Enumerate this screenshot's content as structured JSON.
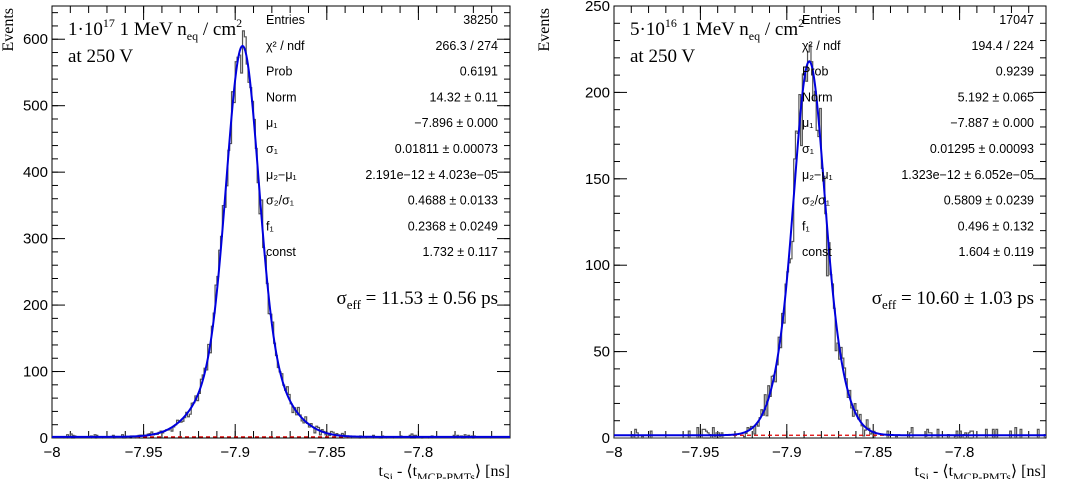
{
  "chart_data": [
    {
      "type": "histogram",
      "ylabel": "Events",
      "xlabel": {
        "main": "t",
        "sub1": "Si",
        "mid": " - ⟨t",
        "sub2": "MCP-PMTs",
        "end": "⟩ [ns]"
      },
      "xlim": [
        -8.0,
        -7.75
      ],
      "ylim": [
        0,
        650
      ],
      "x_ticks": [
        -8,
        -7.95,
        -7.9,
        -7.85,
        -7.8
      ],
      "x_tick_labels": [
        "−8",
        "−7.95",
        "−7.9",
        "−7.85",
        "−7.8"
      ],
      "y_ticks": [
        0,
        100,
        200,
        300,
        400,
        500,
        600
      ],
      "y_tick_labels": [
        "0",
        "100",
        "200",
        "300",
        "400",
        "500",
        "600"
      ],
      "condition": {
        "base": "1·10",
        "exp": "17",
        "mid": " 1 MeV n",
        "sub": "eq",
        "tail": " / cm",
        "exp2": "2",
        "line2": "at 250 V"
      },
      "stats": [
        {
          "label": "Entries",
          "value": "38250"
        },
        {
          "label": "χ² / ndf",
          "value": "266.3 / 274"
        },
        {
          "label": "Prob",
          "value": "0.6191"
        },
        {
          "label": "Norm",
          "value": "14.32  ± 0.11"
        },
        {
          "label": "μ₁",
          "value": "−7.896  ± 0.000"
        },
        {
          "label": "σ₁",
          "value": "0.01811  ± 0.00073"
        },
        {
          "label": "μ₂−μ₁",
          "value": "2.191e−12  ± 4.023e−05"
        },
        {
          "label": "σ₂/σ₁",
          "value": "0.4688  ± 0.0133"
        },
        {
          "label": "f₁",
          "value": "0.2368  ± 0.0249"
        },
        {
          "label": "const",
          "value": "1.732  ± 0.117"
        }
      ],
      "sigma_eff": {
        "symbol": "σ",
        "sub": "eff",
        "text": " = 11.53 ± 0.56 ps"
      },
      "fit": {
        "mu": -7.896,
        "peak": 590,
        "sigma1": 0.01811,
        "sigma_ratio": 0.4688,
        "f1": 0.2368,
        "const": 1.732
      },
      "series": [
        {
          "values_shape": "histogram",
          "bin_width": 0.001
        },
        {
          "values_shape": "fit"
        },
        {
          "values_shape": "constant"
        }
      ],
      "colors": {
        "hist": "#555555",
        "fit": "#0000dd",
        "const": "#dd0000"
      }
    },
    {
      "type": "histogram",
      "ylabel": "Events",
      "xlabel": {
        "main": "t",
        "sub1": "Si",
        "mid": " - ⟨t",
        "sub2": "MCP-PMTs",
        "end": "⟩ [ns]"
      },
      "xlim": [
        -8.0,
        -7.75
      ],
      "ylim": [
        0,
        250
      ],
      "x_ticks": [
        -8,
        -7.95,
        -7.9,
        -7.85,
        -7.8
      ],
      "x_tick_labels": [
        "−8",
        "−7.95",
        "−7.9",
        "−7.85",
        "−7.8"
      ],
      "y_ticks": [
        0,
        50,
        100,
        150,
        200,
        250
      ],
      "y_tick_labels": [
        "0",
        "50",
        "100",
        "150",
        "200",
        "250"
      ],
      "condition": {
        "base": "5·10",
        "exp": "16",
        "mid": " 1 MeV n",
        "sub": "eq",
        "tail": " / cm",
        "exp2": "2",
        "line2": "at 250 V"
      },
      "stats": [
        {
          "label": "Entries",
          "value": "17047"
        },
        {
          "label": "χ² / ndf",
          "value": "194.4 / 224"
        },
        {
          "label": "Prob",
          "value": "0.9239"
        },
        {
          "label": "Norm",
          "value": "5.192  ± 0.065"
        },
        {
          "label": "μ₁",
          "value": "−7.887  ± 0.000"
        },
        {
          "label": "σ₁",
          "value": "0.01295  ± 0.00093"
        },
        {
          "label": "μ₂−μ₁",
          "value": "1.323e−12  ± 6.052e−05"
        },
        {
          "label": "σ₂/σ₁",
          "value": "0.5809  ± 0.0239"
        },
        {
          "label": "f₁",
          "value": "0.496  ± 0.132"
        },
        {
          "label": "const",
          "value": "1.604  ± 0.119"
        }
      ],
      "sigma_eff": {
        "symbol": "σ",
        "sub": "eff",
        "text": " = 10.60 ± 1.03 ps"
      },
      "fit": {
        "mu": -7.887,
        "peak": 218,
        "sigma1": 0.01295,
        "sigma_ratio": 0.5809,
        "f1": 0.496,
        "const": 1.604
      },
      "series": [
        {
          "values_shape": "histogram",
          "bin_width": 0.001
        },
        {
          "values_shape": "fit"
        },
        {
          "values_shape": "constant"
        }
      ],
      "colors": {
        "hist": "#555555",
        "fit": "#0000dd",
        "const": "#dd0000"
      }
    }
  ]
}
